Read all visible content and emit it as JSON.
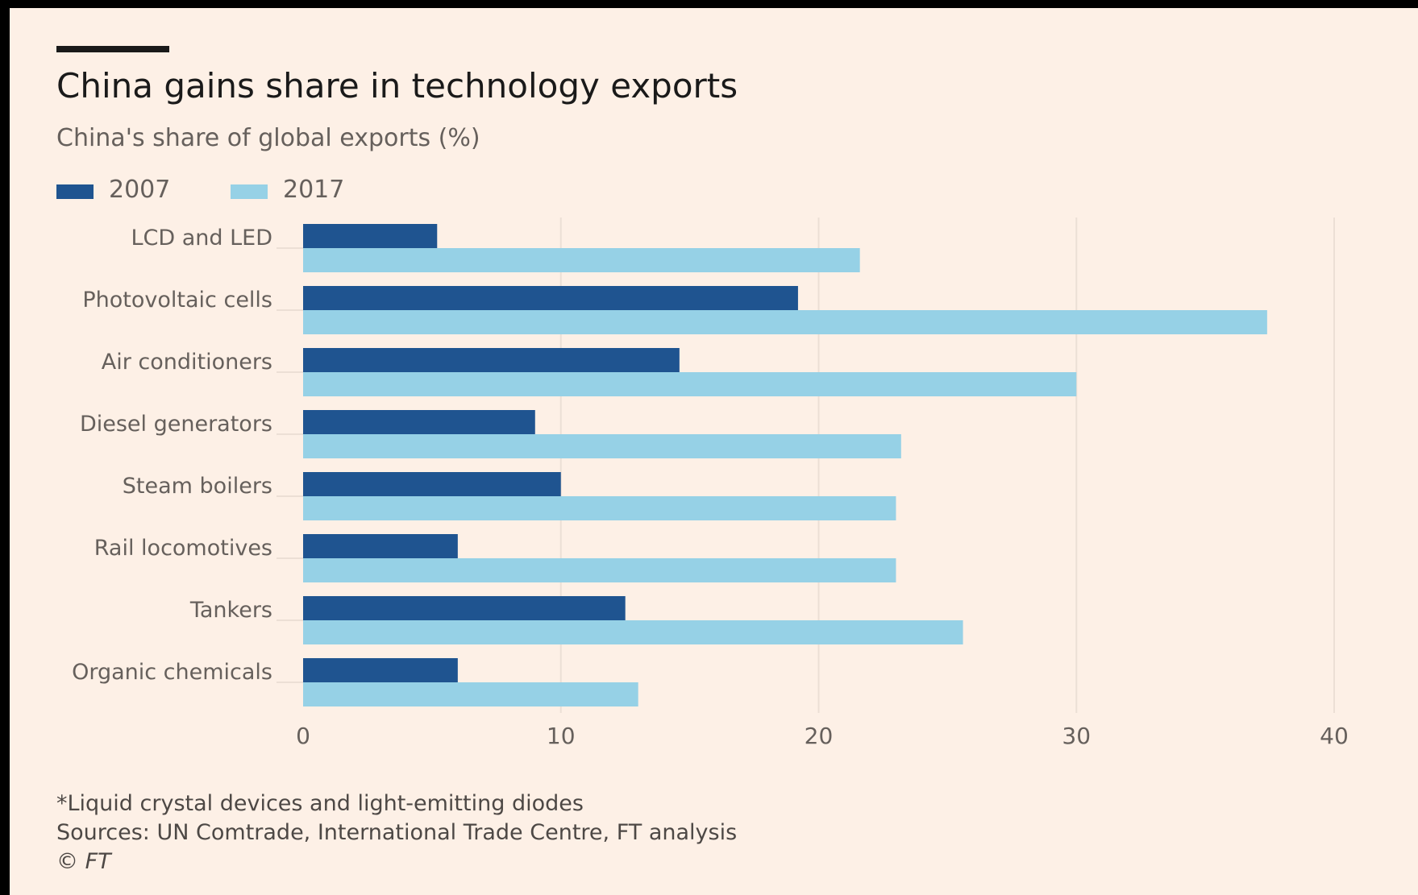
{
  "colors": {
    "background": "#fdf0e6",
    "series_2007": "#1f5490",
    "series_2017": "#96d1e6",
    "grid": "#ecdfd5",
    "text": "#66605c"
  },
  "footnotes": {
    "note": "*Liquid crystal devices and light-emitting diodes",
    "sources": "Sources: UN Comtrade, International Trade Centre, FT analysis",
    "copyright": "© FT"
  },
  "chart_data": {
    "type": "bar",
    "orientation": "horizontal",
    "title": "China gains share in technology exports",
    "subtitle": "China's share of global exports (%)",
    "categories": [
      "LCD and LED",
      "Photovoltaic cells",
      "Air conditioners",
      "Diesel generators",
      "Steam boilers",
      "Rail locomotives",
      "Tankers",
      "Organic chemicals"
    ],
    "series": [
      {
        "name": "2007",
        "color": "#1f5490",
        "values": [
          5.2,
          19.2,
          14.6,
          9.0,
          10.0,
          6.0,
          12.5,
          6.0
        ]
      },
      {
        "name": "2017",
        "color": "#96d1e6",
        "values": [
          21.6,
          37.4,
          30.0,
          23.2,
          23.0,
          23.0,
          25.6,
          13.0
        ]
      }
    ],
    "xlim": [
      0,
      40
    ],
    "xticks": [
      0,
      10,
      20,
      30,
      40
    ],
    "xlabel": "",
    "ylabel": "",
    "grid": true,
    "legend_position": "top-left"
  }
}
